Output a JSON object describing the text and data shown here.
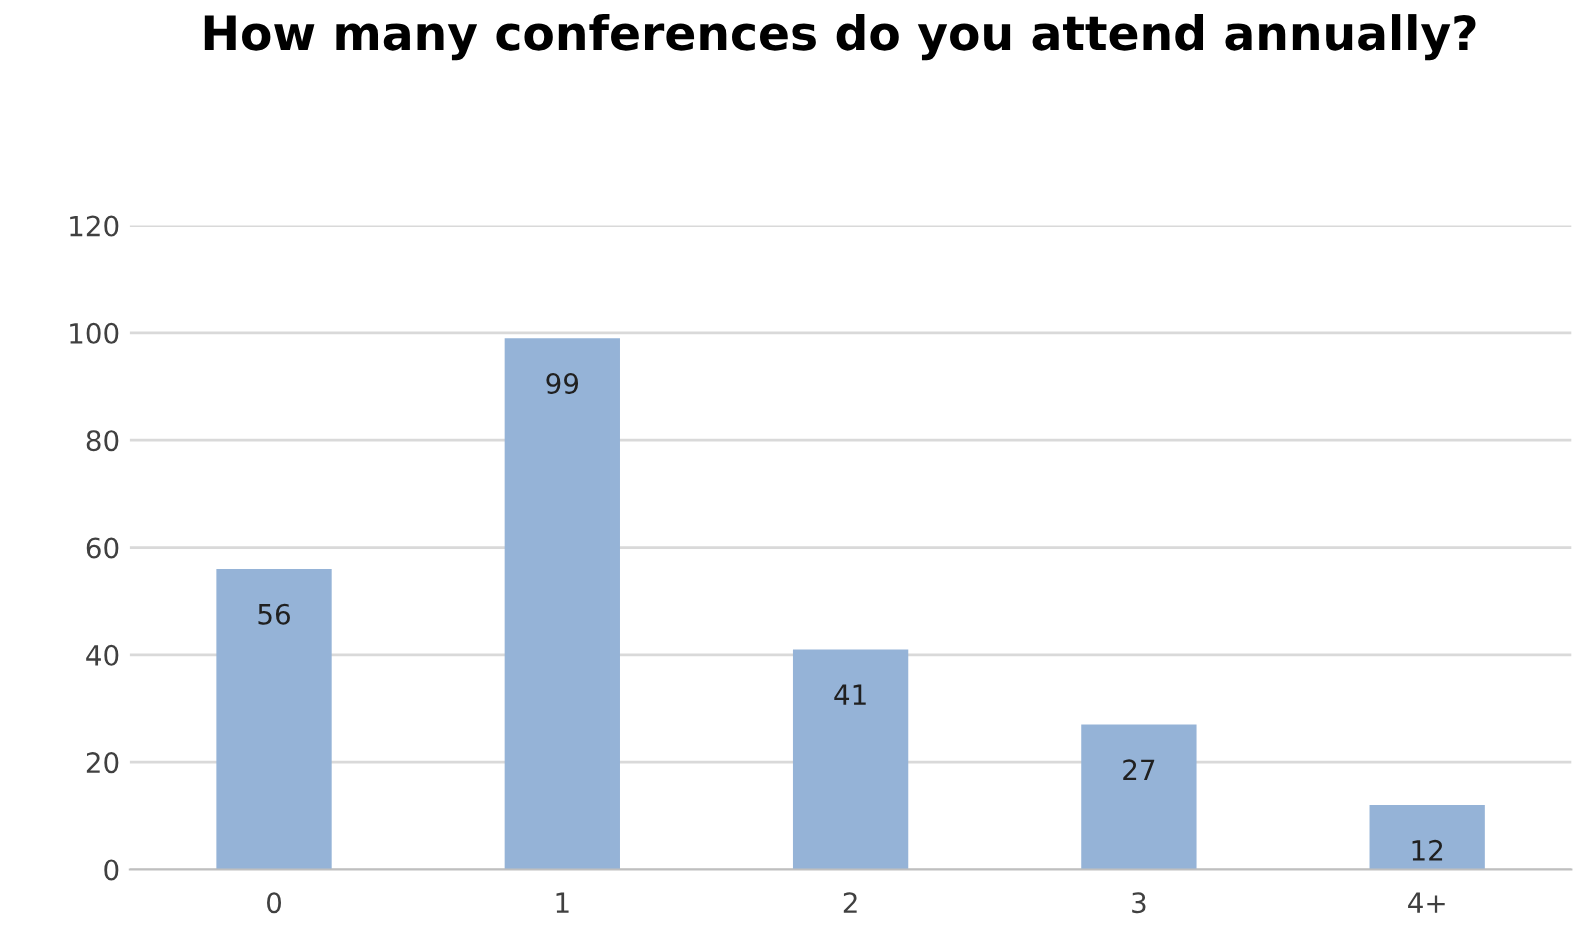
{
  "chart_data": {
    "type": "bar",
    "title": "How many conferences do you attend annually?",
    "categories": [
      "0",
      "1",
      "2",
      "3",
      "4+"
    ],
    "values": [
      56,
      99,
      41,
      27,
      12
    ],
    "color": "#95b3d7",
    "ylim": [
      0,
      120
    ],
    "yticks": [
      0,
      20,
      40,
      60,
      80,
      100,
      120
    ],
    "grid": "y",
    "data_labels": true
  }
}
